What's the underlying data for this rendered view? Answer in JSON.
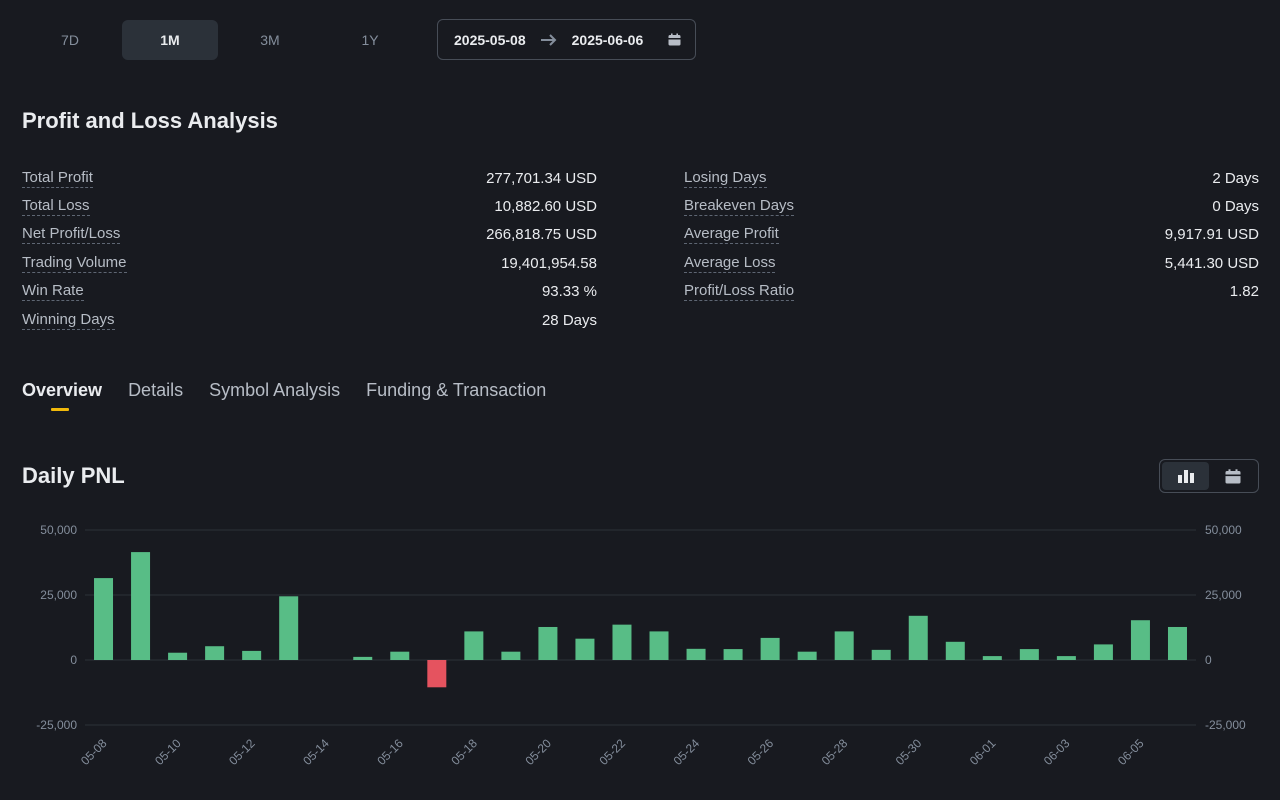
{
  "range_tabs": [
    {
      "label": "7D",
      "active": false
    },
    {
      "label": "1M",
      "active": true
    },
    {
      "label": "3M",
      "active": false
    },
    {
      "label": "1Y",
      "active": false
    }
  ],
  "date_range": {
    "start": "2025-05-08",
    "end": "2025-06-06",
    "arrow_icon": "arrow-right-icon",
    "calendar_icon": "calendar-icon"
  },
  "pnl_section": {
    "title": "Profit and Loss Analysis",
    "left_stats": [
      {
        "label": "Total Profit",
        "value": "277,701.34 USD"
      },
      {
        "label": "Total Loss",
        "value": "10,882.60 USD"
      },
      {
        "label": "Net Profit/Loss",
        "value": "266,818.75 USD"
      },
      {
        "label": "Trading Volume",
        "value": "19,401,954.58"
      },
      {
        "label": "Win Rate",
        "value": "93.33 %"
      },
      {
        "label": "Winning Days",
        "value": "28 Days"
      }
    ],
    "right_stats": [
      {
        "label": "Losing Days",
        "value": "2 Days"
      },
      {
        "label": "Breakeven Days",
        "value": "0 Days"
      },
      {
        "label": "Average Profit",
        "value": "9,917.91 USD"
      },
      {
        "label": "Average Loss",
        "value": "5,441.30 USD"
      },
      {
        "label": "Profit/Loss Ratio",
        "value": "1.82"
      }
    ]
  },
  "tabs": [
    {
      "label": "Overview",
      "active": true
    },
    {
      "label": "Details",
      "active": false
    },
    {
      "label": "Symbol Analysis",
      "active": false
    },
    {
      "label": "Funding & Transaction",
      "active": false
    }
  ],
  "daily_pnl": {
    "title": "Daily PNL",
    "view_toggle": [
      {
        "icon": "bar-chart-icon",
        "active": true
      },
      {
        "icon": "calendar-icon",
        "active": false
      }
    ]
  },
  "colors": {
    "profit": "#58bd86",
    "loss": "#e5535f",
    "accent": "#f0b90b",
    "background": "#181a20"
  },
  "chart_data": {
    "type": "bar",
    "categories": [
      "05-08",
      "05-09",
      "05-10",
      "05-11",
      "05-12",
      "05-13",
      "05-14",
      "05-15",
      "05-16",
      "05-17",
      "05-18",
      "05-19",
      "05-20",
      "05-21",
      "05-22",
      "05-23",
      "05-24",
      "05-25",
      "05-26",
      "05-27",
      "05-28",
      "05-29",
      "05-30",
      "05-31",
      "06-01",
      "06-02",
      "06-03",
      "06-04",
      "06-05",
      "06-06"
    ],
    "tick_labels": [
      "05-08",
      "05-10",
      "05-12",
      "05-14",
      "05-16",
      "05-18",
      "05-20",
      "05-22",
      "05-24",
      "05-26",
      "05-28",
      "05-30",
      "06-01",
      "06-03",
      "06-05"
    ],
    "values": [
      31500,
      41500,
      2800,
      5300,
      3500,
      24500,
      0,
      1200,
      3200,
      -10500,
      11000,
      3200,
      12700,
      8200,
      13600,
      11000,
      4300,
      4200,
      8500,
      3200,
      11000,
      3900,
      17000,
      7000,
      1500,
      4200,
      1500,
      6000,
      15300,
      12700
    ],
    "ylim": [
      -25000,
      50000
    ],
    "yticks": [
      "50,000",
      "25,000",
      "0",
      "-25,000"
    ],
    "ytick_values": [
      50000,
      25000,
      0,
      -25000
    ],
    "secondary_yaxis": true,
    "grid": true
  }
}
